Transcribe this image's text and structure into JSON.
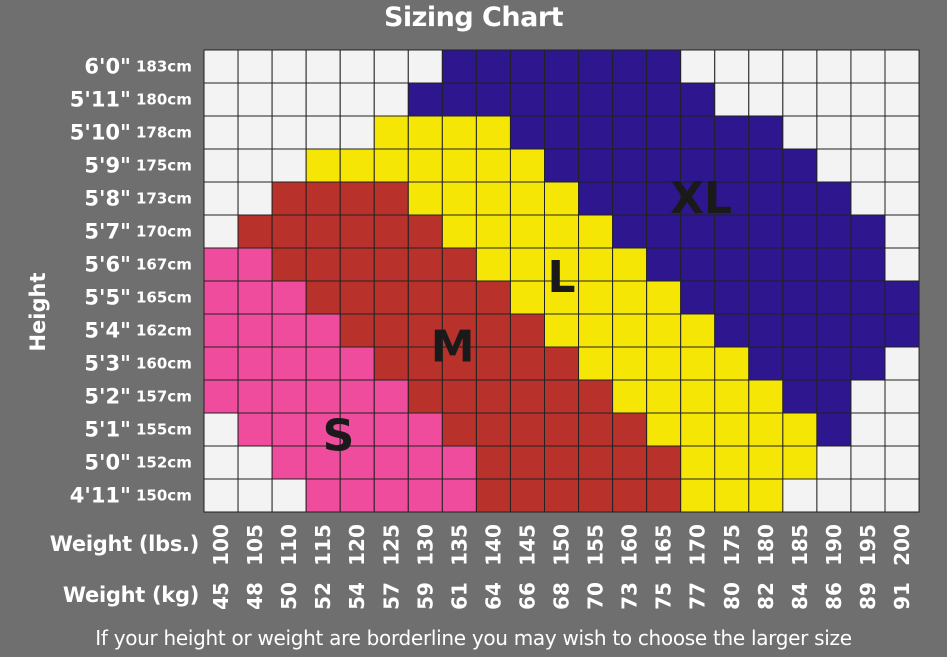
{
  "title": "Sizing Chart",
  "footnote": "If your height or weight are borderline you may wish to choose the larger size",
  "colors": {
    "background": "#6f6f6f",
    "S": "#ef4c9e",
    "M": "#b8312b",
    "L": "#f6e605",
    "XL": "#2e168f",
    "empty": "#f3f3f3",
    "gridline": "#222222"
  },
  "chart_data": {
    "type": "heatmap",
    "title": "Sizing Chart",
    "ylabel": "Height",
    "xlabel": "Weight (lbs.)",
    "xlabel2": "Weight (kg)",
    "x_lbs": [
      "100",
      "105",
      "110",
      "115",
      "120",
      "125",
      "130",
      "135",
      "140",
      "145",
      "150",
      "155",
      "160",
      "165",
      "170",
      "175",
      "180",
      "185",
      "190",
      "195",
      "200"
    ],
    "x_kg": [
      "45",
      "48",
      "50",
      "52",
      "54",
      "57",
      "59",
      "61",
      "64",
      "66",
      "68",
      "70",
      "73",
      "75",
      "77",
      "80",
      "82",
      "84",
      "86",
      "89",
      "91"
    ],
    "y_ft": [
      "6'0\"",
      "5'11\"",
      "5'10\"",
      "5'9\"",
      "5'8\"",
      "5'7\"",
      "5'6\"",
      "5'5\"",
      "5'4\"",
      "5'3\"",
      "5'2\"",
      "5'1\"",
      "5'0\"",
      "4'11\""
    ],
    "y_cm": [
      "183cm",
      "180cm",
      "178cm",
      "175cm",
      "173cm",
      "170cm",
      "167cm",
      "165cm",
      "162cm",
      "160cm",
      "157cm",
      "155cm",
      "152cm",
      "150cm"
    ],
    "rows": [
      ".......XXXXXXX.......",
      "......XXXXXXXXX......",
      ".....LLLLXXXXXXXX....",
      "...LLLLLLLXXXXXXXX...",
      "..MMMMLLLLLXXXXXXXX..",
      ".MMMMMMLLLLLXXXXXXXX.",
      "SSMMMMMMLLLLLXXXXXXX.",
      "SSSMMMMMMLLLLLXXXXXXX",
      "SSSSMMMMMMLLLLLXXXXXX",
      "SSSSSMMMMMMLLLLLXXXX.",
      "SSSSSSMMMMMMLLLLLXX..",
      ".SSSSSSMMMMMMLLLLLX..",
      "..SSSSSSMMMMMMLLLL...",
      "...SSSSSMMMMMMLLL...."
    ],
    "legend": [
      "S",
      "M",
      "L",
      "XL"
    ],
    "region_labels": [
      {
        "text": "S",
        "col": 3.95,
        "row": 11.7
      },
      {
        "text": "M",
        "col": 7.3,
        "row": 9.0
      },
      {
        "text": "L",
        "col": 10.5,
        "row": 6.9
      },
      {
        "text": "XL",
        "col": 14.6,
        "row": 4.5
      }
    ]
  }
}
